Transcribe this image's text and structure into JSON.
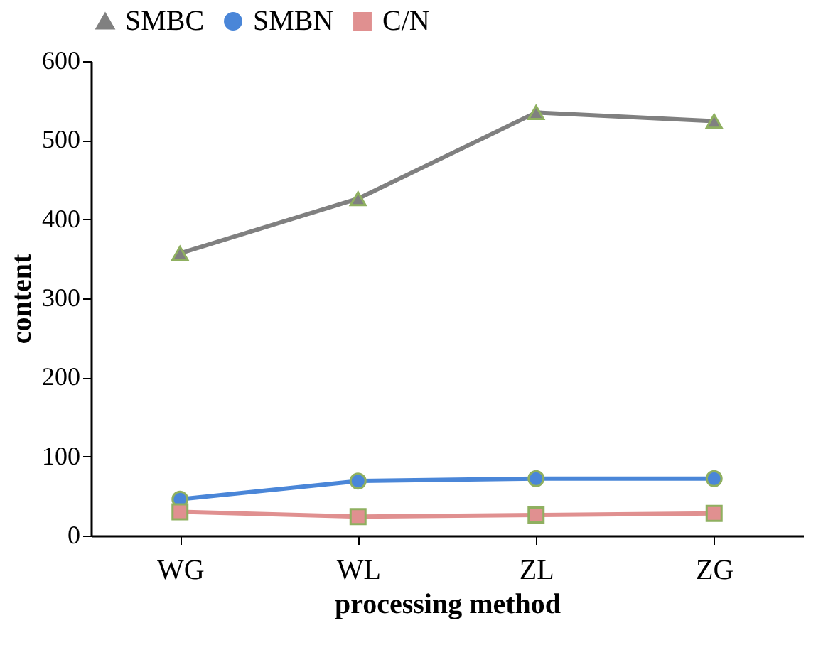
{
  "chart_data": {
    "type": "line",
    "xlabel": "processing method",
    "ylabel": "content",
    "categories": [
      "WG",
      "WL",
      "ZL",
      "ZG"
    ],
    "series": [
      {
        "name": "SMBC",
        "color": "#808080",
        "marker": "triangle",
        "values": [
          357,
          426,
          535,
          524
        ]
      },
      {
        "name": "SMBN",
        "color": "#4a86d8",
        "marker": "circle",
        "values": [
          46,
          69,
          72,
          72
        ]
      },
      {
        "name": "C/N",
        "color": "#e09090",
        "marker": "square",
        "values": [
          30,
          24,
          26,
          28
        ]
      }
    ],
    "ylim": [
      0,
      600
    ],
    "yticks": [
      0,
      100,
      200,
      300,
      400,
      500,
      600
    ],
    "grid": false,
    "legend": "top"
  }
}
